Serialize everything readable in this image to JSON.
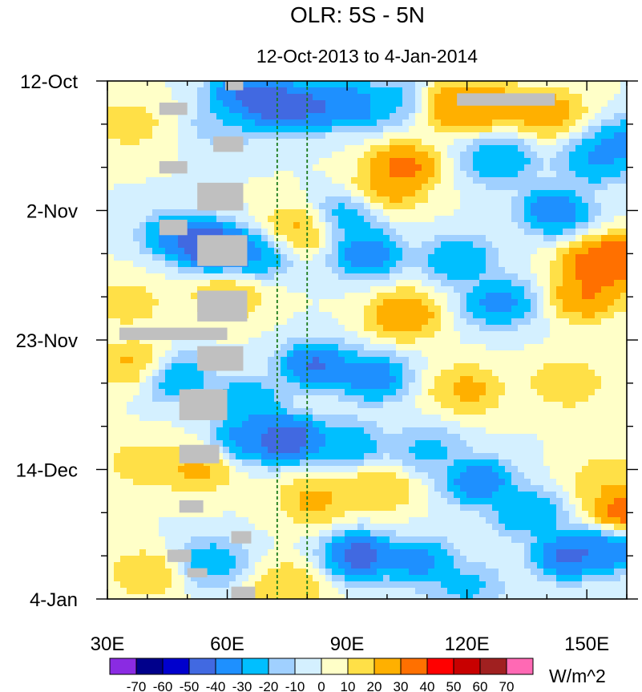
{
  "chart_data": {
    "type": "heatmap",
    "title": "OLR: 5S - 5N",
    "subtitle": "12-Oct-2013 to 4-Jan-2014",
    "x_axis": {
      "range": [
        30,
        160
      ],
      "ticks": [
        30,
        60,
        90,
        120,
        150
      ],
      "tick_labels": [
        "30E",
        "60E",
        "90E",
        "120E",
        "150E"
      ]
    },
    "y_axis": {
      "range_days_since_start": [
        0,
        84
      ],
      "ticks": [
        0,
        21,
        42,
        63,
        84
      ],
      "tick_labels": [
        "12-Oct",
        "2-Nov",
        "23-Nov",
        "14-Dec",
        "4-Jan"
      ],
      "direction": "time increases downward"
    },
    "reference_lines_longitude": [
      72.5,
      80
    ],
    "colorbar": {
      "unit_label": "W/m^2",
      "levels": [
        -70,
        -60,
        -50,
        -40,
        -30,
        -20,
        -10,
        0,
        10,
        20,
        30,
        40,
        50,
        60,
        70
      ],
      "level_labels": [
        "-70",
        "-60",
        "-50",
        "-40",
        "-30",
        "-20",
        "-10",
        "0",
        "10",
        "20",
        "30",
        "40",
        "50",
        "60",
        "70"
      ],
      "colors": [
        "#8a2be2",
        "#00008b",
        "#0000cd",
        "#4169e1",
        "#1e90ff",
        "#00bfff",
        "#a0d0ff",
        "#d4f0ff",
        "#ffffc8",
        "#ffe047",
        "#ffb000",
        "#ff7000",
        "#ff0000",
        "#c80000",
        "#a02020",
        "#ff69b4"
      ]
    },
    "anomaly_features": [
      {
        "lon": 64,
        "day": 2,
        "value": -55
      },
      {
        "lon": 71,
        "day": 4,
        "value": -60
      },
      {
        "lon": 80,
        "day": 4,
        "value": -55
      },
      {
        "lon": 91,
        "day": 4,
        "value": -50
      },
      {
        "lon": 102,
        "day": 3,
        "value": -30
      },
      {
        "lon": 116,
        "day": 4,
        "value": 40
      },
      {
        "lon": 126,
        "day": 4,
        "value": 35
      },
      {
        "lon": 140,
        "day": 5,
        "value": 35
      },
      {
        "lon": 35,
        "day": 7,
        "value": 20
      },
      {
        "lon": 60,
        "day": 7,
        "value": -25
      },
      {
        "lon": 104,
        "day": 14,
        "value": 45
      },
      {
        "lon": 128,
        "day": 13,
        "value": -40
      },
      {
        "lon": 152,
        "day": 13,
        "value": -40
      },
      {
        "lon": 160,
        "day": 10,
        "value": -45
      },
      {
        "lon": 100,
        "day": 18,
        "value": 30
      },
      {
        "lon": 90,
        "day": 22,
        "value": -35
      },
      {
        "lon": 142,
        "day": 21,
        "value": -50
      },
      {
        "lon": 48,
        "day": 25,
        "value": -50
      },
      {
        "lon": 57,
        "day": 27,
        "value": -70
      },
      {
        "lon": 67,
        "day": 28,
        "value": -40
      },
      {
        "lon": 78,
        "day": 24,
        "value": 30
      },
      {
        "lon": 95,
        "day": 28,
        "value": -50
      },
      {
        "lon": 118,
        "day": 29,
        "value": -40
      },
      {
        "lon": 152,
        "day": 30,
        "value": 45
      },
      {
        "lon": 158,
        "day": 29,
        "value": 50
      },
      {
        "lon": 104,
        "day": 38,
        "value": 40
      },
      {
        "lon": 128,
        "day": 36,
        "value": -45
      },
      {
        "lon": 150,
        "day": 35,
        "value": 40
      },
      {
        "lon": 35,
        "day": 36,
        "value": 20
      },
      {
        "lon": 60,
        "day": 35,
        "value": 25
      },
      {
        "lon": 82,
        "day": 46,
        "value": -55
      },
      {
        "lon": 96,
        "day": 48,
        "value": -50
      },
      {
        "lon": 65,
        "day": 52,
        "value": -40
      },
      {
        "lon": 47,
        "day": 48,
        "value": -40
      },
      {
        "lon": 37,
        "day": 46,
        "value": 30
      },
      {
        "lon": 120,
        "day": 50,
        "value": 30
      },
      {
        "lon": 145,
        "day": 49,
        "value": 25
      },
      {
        "lon": 75,
        "day": 58,
        "value": -65
      },
      {
        "lon": 65,
        "day": 58,
        "value": -45
      },
      {
        "lon": 90,
        "day": 59,
        "value": -40
      },
      {
        "lon": 110,
        "day": 60,
        "value": -30
      },
      {
        "lon": 52,
        "day": 63,
        "value": 30
      },
      {
        "lon": 38,
        "day": 62,
        "value": 20
      },
      {
        "lon": 82,
        "day": 68,
        "value": 30
      },
      {
        "lon": 98,
        "day": 66,
        "value": 25
      },
      {
        "lon": 123,
        "day": 65,
        "value": -50
      },
      {
        "lon": 135,
        "day": 70,
        "value": -40
      },
      {
        "lon": 155,
        "day": 65,
        "value": 25
      },
      {
        "lon": 160,
        "day": 70,
        "value": 50
      },
      {
        "lon": 93,
        "day": 77,
        "value": -60
      },
      {
        "lon": 108,
        "day": 78,
        "value": -45
      },
      {
        "lon": 145,
        "day": 77,
        "value": -55
      },
      {
        "lon": 155,
        "day": 76,
        "value": -50
      },
      {
        "lon": 56,
        "day": 78,
        "value": -35
      },
      {
        "lon": 40,
        "day": 80,
        "value": 25
      },
      {
        "lon": 75,
        "day": 82,
        "value": 25
      },
      {
        "lon": 120,
        "day": 82,
        "value": -30
      }
    ],
    "missing_data_regions": [
      {
        "lon": [
          59.5,
          64
        ],
        "day": [
          0,
          1.5
        ]
      },
      {
        "lon": [
          43,
          50
        ],
        "day": [
          3.5,
          5.5
        ]
      },
      {
        "lon": [
          56.5,
          64
        ],
        "day": [
          9,
          11.5
        ]
      },
      {
        "lon": [
          43,
          50
        ],
        "day": [
          13,
          15
        ]
      },
      {
        "lon": [
          52.5,
          64
        ],
        "day": [
          16.5,
          21
        ]
      },
      {
        "lon": [
          43,
          50
        ],
        "day": [
          22.5,
          25
        ]
      },
      {
        "lon": [
          52.5,
          65
        ],
        "day": [
          25,
          30
        ]
      },
      {
        "lon": [
          52.5,
          65
        ],
        "day": [
          34,
          39
        ]
      },
      {
        "lon": [
          33,
          60
        ],
        "day": [
          40,
          42
        ]
      },
      {
        "lon": [
          52.5,
          64
        ],
        "day": [
          43,
          47
        ]
      },
      {
        "lon": [
          48,
          60
        ],
        "day": [
          50,
          55
        ]
      },
      {
        "lon": [
          48,
          58
        ],
        "day": [
          59,
          62
        ]
      },
      {
        "lon": [
          48,
          54
        ],
        "day": [
          68,
          70
        ]
      },
      {
        "lon": [
          45,
          51
        ],
        "day": [
          76,
          78
        ]
      },
      {
        "lon": [
          61,
          66
        ],
        "day": [
          73,
          75
        ]
      },
      {
        "lon": [
          50,
          55
        ],
        "day": [
          79,
          80.5
        ]
      },
      {
        "lon": [
          61,
          67
        ],
        "day": [
          82,
          84
        ]
      },
      {
        "lon": [
          117.5,
          142
        ],
        "day": [
          2,
          4
        ]
      }
    ]
  }
}
